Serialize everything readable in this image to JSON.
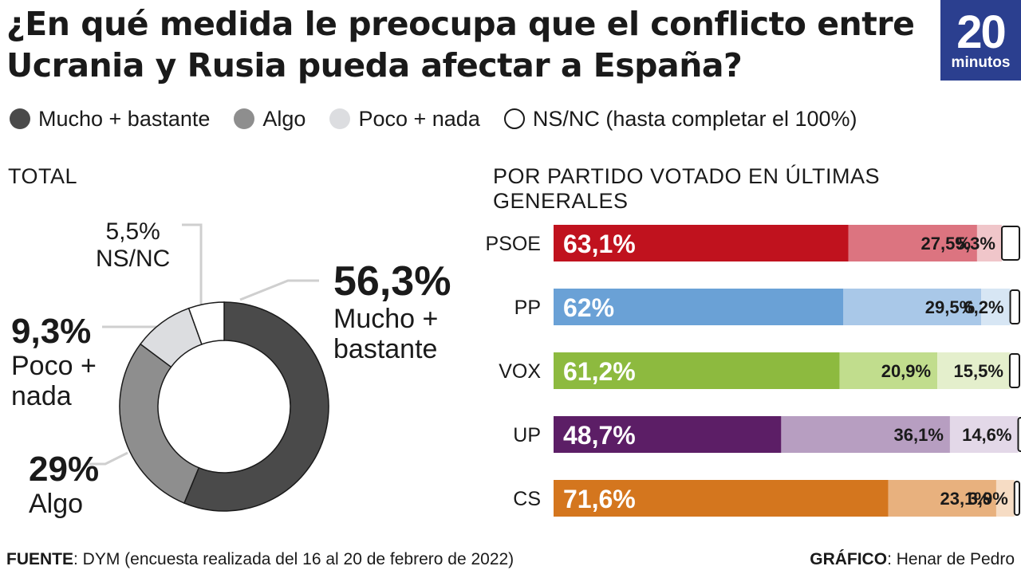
{
  "title": "¿En qué medida le preocupa que el conflicto entre Ucrania y Rusia pueda afectar a España?",
  "logo": {
    "number": "20",
    "word": "minutos",
    "color": "#2b3f8f"
  },
  "legend": [
    {
      "label": "Mucho + bastante",
      "color": "#4a4a4a"
    },
    {
      "label": "Algo",
      "color": "#8e8e8e"
    },
    {
      "label": "Poco + nada",
      "color": "#dcdde0"
    },
    {
      "label": "NS/NC (hasta completar el 100%)",
      "color": "#ffffff"
    }
  ],
  "total_title": "TOTAL",
  "party_title": "POR PARTIDO VOTADO EN ÚLTIMAS GENERALES",
  "donut_labels": {
    "mucho": {
      "value": "56,3%",
      "label_1": "Mucho +",
      "label_2": "bastante"
    },
    "algo": {
      "value": "29%",
      "label": "Algo"
    },
    "poco": {
      "value": "9,3%",
      "label_1": "Poco +",
      "label_2": "nada"
    },
    "nsnc": {
      "value": "5,5%",
      "label": "NS/NC"
    }
  },
  "footer": {
    "source_label": "FUENTE",
    "source_text": ": DYM (encuesta realizada del 16 al 20 de febrero de 2022)",
    "credit_label": "GRÁFICO",
    "credit_text": ": Henar de Pedro"
  },
  "chart_data": [
    {
      "type": "pie",
      "title": "TOTAL",
      "categories": [
        "Mucho + bastante",
        "Algo",
        "Poco + nada",
        "NS/NC"
      ],
      "values": [
        56.3,
        29,
        9.3,
        5.5
      ],
      "value_labels": [
        "56,3%",
        "29%",
        "9,3%",
        "5,5%"
      ],
      "colors": [
        "#4a4a4a",
        "#8e8e8e",
        "#dcdde0",
        "#ffffff"
      ]
    },
    {
      "type": "bar",
      "orientation": "horizontal",
      "stacked": true,
      "title": "POR PARTIDO VOTADO EN ÚLTIMAS GENERALES",
      "categories": [
        "PSOE",
        "PP",
        "VOX",
        "UP",
        "CS"
      ],
      "series": [
        {
          "name": "Mucho + bastante",
          "values": [
            63.1,
            62,
            61.2,
            48.7,
            71.6
          ],
          "labels": [
            "63,1%",
            "62%",
            "61,2%",
            "48,7%",
            "71,6%"
          ]
        },
        {
          "name": "Algo",
          "values": [
            27.5,
            29.5,
            20.9,
            36.1,
            23.1
          ],
          "labels": [
            "27,5%",
            "29,5%",
            "20,9%",
            "36,1%",
            "23,1%"
          ]
        },
        {
          "name": "Poco + nada",
          "values": [
            5.3,
            6.2,
            15.5,
            14.6,
            3.9
          ],
          "labels": [
            "5,3%",
            "6,2%",
            "15,5%",
            "14,6%",
            "3,9%"
          ]
        },
        {
          "name": "NS/NC",
          "values": [
            4.1,
            2.3,
            2.4,
            0.6,
            1.4
          ]
        }
      ],
      "party_colors": [
        [
          "#c0121e",
          "#dc7480",
          "#f0c6ca"
        ],
        [
          "#6aa1d6",
          "#a9c8e8",
          "#d7e6f4"
        ],
        [
          "#8dba3f",
          "#c1dd8d",
          "#e4efcc"
        ],
        [
          "#5c1e66",
          "#b79ec1",
          "#e3d8e8"
        ],
        [
          "#d4761e",
          "#e8b17e",
          "#f6dcc4"
        ]
      ],
      "xlim": [
        0,
        100
      ]
    }
  ]
}
